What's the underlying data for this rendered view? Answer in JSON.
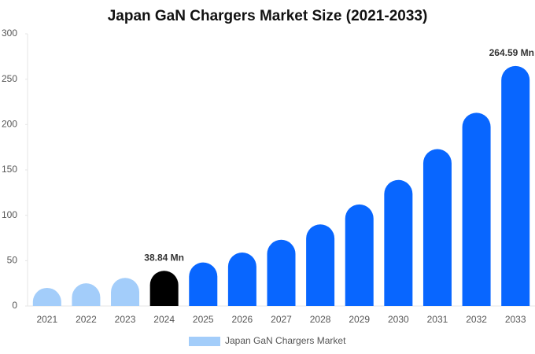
{
  "chart_data": {
    "type": "bar",
    "title": "Japan GaN Chargers Market Size (2021-2033)",
    "categories": [
      "2021",
      "2022",
      "2023",
      "2024",
      "2025",
      "2026",
      "2027",
      "2028",
      "2029",
      "2030",
      "2031",
      "2032",
      "2033"
    ],
    "series": [
      {
        "name": "Japan GaN Chargers Market",
        "color": "#a3cdfa",
        "bar_colors": [
          "#a3cdfa",
          "#a3cdfa",
          "#a3cdfa",
          "#000000",
          "#0866ff",
          "#0866ff",
          "#0866ff",
          "#0866ff",
          "#0866ff",
          "#0866ff",
          "#0866ff",
          "#0866ff",
          "#0866ff"
        ],
        "values": [
          20,
          25,
          31,
          38.84,
          48,
          59,
          73,
          90,
          112,
          139,
          173,
          213,
          264.59
        ],
        "value_labels": [
          null,
          null,
          null,
          "38.84 Mn",
          null,
          null,
          null,
          null,
          null,
          null,
          null,
          null,
          "264.59 Mn"
        ]
      }
    ],
    "ylim": [
      0,
      300
    ],
    "yticks": [
      0,
      50,
      100,
      150,
      200,
      250,
      300
    ],
    "grid": false
  }
}
